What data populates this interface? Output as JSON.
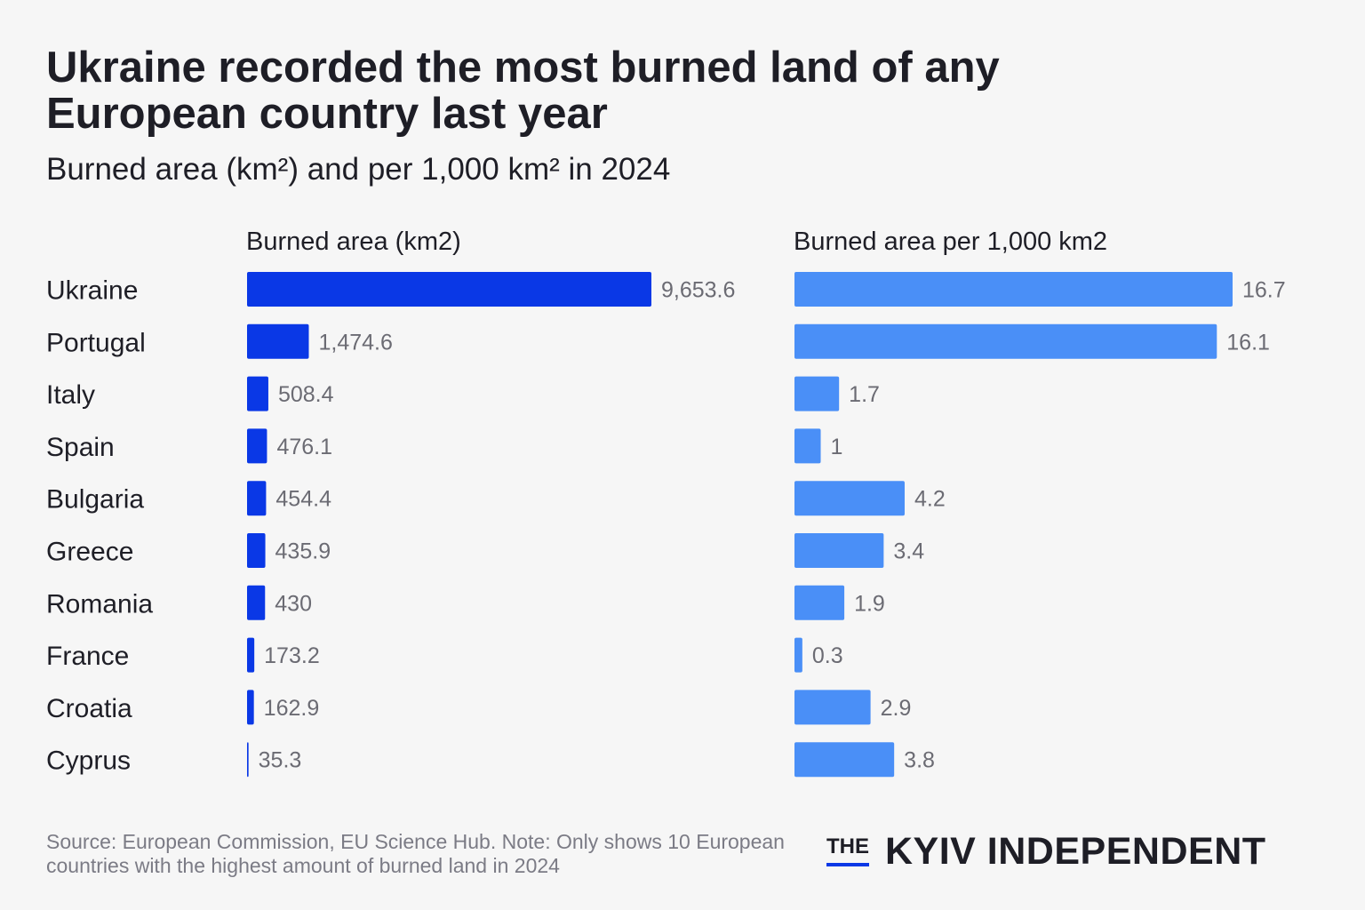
{
  "title": "Ukraine recorded the most burned land of any European country last year",
  "subtitle": "Burned area (km²) and per 1,000 km² in 2024",
  "chart_data": [
    {
      "type": "bar",
      "orientation": "horizontal",
      "title": "Burned area (km2)",
      "categories": [
        "Ukraine",
        "Portugal",
        "Italy",
        "Spain",
        "Bulgaria",
        "Greece",
        "Romania",
        "France",
        "Croatia",
        "Cyprus"
      ],
      "values": [
        9653.6,
        1474.6,
        508.4,
        476.1,
        454.4,
        435.9,
        430,
        173.2,
        162.9,
        35.3
      ],
      "value_labels": [
        "9,653.6",
        "1,474.6",
        "508.4",
        "476.1",
        "454.4",
        "435.9",
        "430",
        "173.2",
        "162.9",
        "35.3"
      ],
      "color": "#0a38e6",
      "xlim": [
        0,
        9653.6
      ],
      "grid": false
    },
    {
      "type": "bar",
      "orientation": "horizontal",
      "title": "Burned area per 1,000 km2",
      "categories": [
        "Ukraine",
        "Portugal",
        "Italy",
        "Spain",
        "Bulgaria",
        "Greece",
        "Romania",
        "France",
        "Croatia",
        "Cyprus"
      ],
      "values": [
        16.7,
        16.1,
        1.7,
        1,
        4.2,
        3.4,
        1.9,
        0.3,
        2.9,
        3.8
      ],
      "value_labels": [
        "16.7",
        "16.1",
        "1.7",
        "1",
        "4.2",
        "3.4",
        "1.9",
        "0.3",
        "2.9",
        "3.8"
      ],
      "color": "#4a8ff7",
      "xlim": [
        0,
        16.7
      ],
      "grid": false
    }
  ],
  "footer": {
    "source_note": "Source: European Commission, EU Science Hub. Note: Only shows 10 European countries with the highest amount of burned land in 2024",
    "brand_the": "THE",
    "brand_name": "KYIV INDEPENDENT"
  }
}
